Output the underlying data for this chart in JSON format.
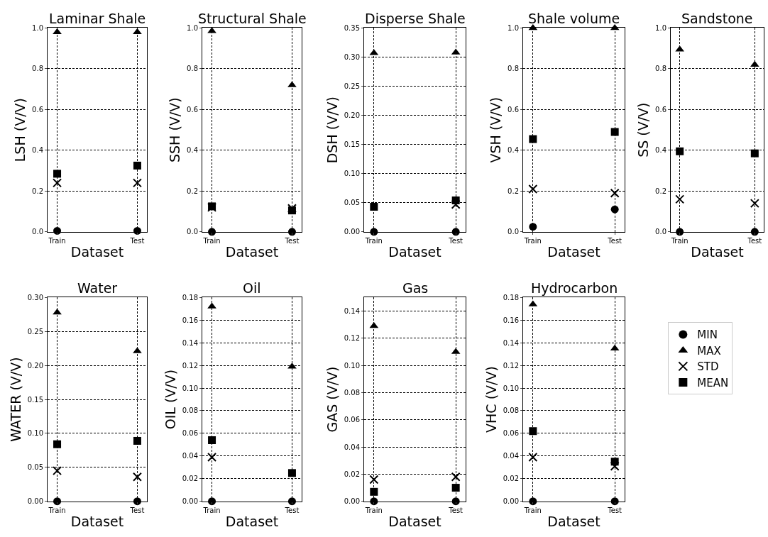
{
  "chart_data": [
    {
      "type": "scatter",
      "title": "Laminar Shale",
      "xlabel": "Dataset",
      "ylabel": "LSH (V/V)",
      "categories": [
        "Train",
        "Test"
      ],
      "ylim": [
        0,
        1
      ],
      "yticks": [
        {
          "value": 0,
          "label": "0.0"
        },
        0.2,
        0.4,
        0.6,
        0.8,
        {
          "value": 1,
          "label": "1.0"
        }
      ],
      "grid": true,
      "legend": "right",
      "series": [
        {
          "name": "MIN",
          "color": "#000000",
          "marker": "circle",
          "values": [
            0.005,
            0.005
          ]
        },
        {
          "name": "MAX",
          "color": "#000000",
          "marker": "triangle",
          "values": [
            0.98,
            0.98
          ]
        },
        {
          "name": "STD",
          "color": "#000000",
          "marker": "cross",
          "values": [
            0.24,
            0.24
          ]
        },
        {
          "name": "MEAN",
          "color": "#000000",
          "marker": "square",
          "values": [
            0.285,
            0.325
          ]
        }
      ]
    },
    {
      "type": "scatter",
      "title": "Structural Shale",
      "xlabel": "Dataset",
      "ylabel": "SSH (V/V)",
      "categories": [
        "Train",
        "Test"
      ],
      "ylim": [
        0,
        1
      ],
      "yticks": [
        {
          "value": 0,
          "label": "0.0"
        },
        0.2,
        0.4,
        0.6,
        0.8,
        {
          "value": 1,
          "label": "1.0"
        }
      ],
      "grid": true,
      "series": [
        {
          "color": "#000000",
          "marker": "circle",
          "values": [
            0,
            0
          ]
        },
        {
          "color": "#000000",
          "marker": "triangle",
          "values": [
            0.985,
            0.72
          ]
        },
        {
          "color": "#000000",
          "marker": "cross",
          "values": [
            0.12,
            0.115
          ]
        },
        {
          "color": "#000000",
          "marker": "square",
          "values": [
            0.125,
            0.105
          ]
        }
      ]
    },
    {
      "type": "scatter",
      "title": "Disperse Shale",
      "xlabel": "Dataset",
      "ylabel": "DSH (V/V)",
      "categories": [
        "Train",
        "Test"
      ],
      "ylim": [
        0,
        0.35
      ],
      "yticks": [
        {
          "value": 0,
          "label": "0.00"
        },
        0.05,
        {
          "value": 0.1,
          "label": "0.10"
        },
        0.15,
        {
          "value": 0.2,
          "label": "0.20"
        },
        0.25,
        {
          "value": 0.3,
          "label": "0.30"
        },
        0.35
      ],
      "grid": true,
      "series": [
        {
          "color": "#000000",
          "marker": "circle",
          "values": [
            0,
            0
          ]
        },
        {
          "color": "#000000",
          "marker": "triangle",
          "values": [
            0.307,
            0.308
          ]
        },
        {
          "color": "#000000",
          "marker": "cross",
          "values": [
            null,
            0.047
          ]
        },
        {
          "color": "#000000",
          "marker": "square",
          "values": [
            0.043,
            0.054
          ]
        }
      ]
    },
    {
      "type": "scatter",
      "title": "Shale volume",
      "xlabel": "Dataset",
      "ylabel": "VSH (V/V)",
      "categories": [
        "Train",
        "Test"
      ],
      "ylim": [
        0,
        1
      ],
      "yticks": [
        {
          "value": 0,
          "label": "0.0"
        },
        0.2,
        0.4,
        0.6,
        0.8,
        {
          "value": 1,
          "label": "1.0"
        }
      ],
      "grid": true,
      "series": [
        {
          "color": "#000000",
          "marker": "circle",
          "values": [
            0.025,
            0.11
          ]
        },
        {
          "color": "#000000",
          "marker": "triangle",
          "values": [
            1.0,
            1.0
          ]
        },
        {
          "color": "#000000",
          "marker": "cross",
          "values": [
            0.21,
            0.19
          ]
        },
        {
          "color": "#000000",
          "marker": "square",
          "values": [
            0.455,
            0.49
          ]
        }
      ]
    },
    {
      "type": "scatter",
      "title": "Sandstone",
      "xlabel": "Dataset",
      "ylabel": "SS (V/V)",
      "categories": [
        "Train",
        "Test"
      ],
      "ylim": [
        0,
        1
      ],
      "yticks": [
        {
          "value": 0,
          "label": "0.0"
        },
        0.2,
        0.4,
        0.6,
        0.8,
        {
          "value": 1,
          "label": "1.0"
        }
      ],
      "grid": true,
      "series": [
        {
          "color": "#000000",
          "marker": "circle",
          "values": [
            0,
            0
          ]
        },
        {
          "color": "#000000",
          "marker": "triangle",
          "values": [
            0.895,
            0.82
          ]
        },
        {
          "color": "#000000",
          "marker": "cross",
          "values": [
            0.16,
            0.14
          ]
        },
        {
          "color": "#000000",
          "marker": "square",
          "values": [
            0.395,
            0.385
          ]
        }
      ]
    },
    {
      "type": "scatter",
      "title": "Water",
      "xlabel": "Dataset",
      "ylabel": "WATER (V/V)",
      "categories": [
        "Train",
        "Test"
      ],
      "ylim": [
        0,
        0.3
      ],
      "yticks": [
        {
          "value": 0,
          "label": "0.00"
        },
        0.05,
        {
          "value": 0.1,
          "label": "0.10"
        },
        0.15,
        {
          "value": 0.2,
          "label": "0.20"
        },
        0.25,
        {
          "value": 0.3,
          "label": "0.30"
        }
      ],
      "grid": true,
      "series": [
        {
          "color": "#000000",
          "marker": "circle",
          "values": [
            0,
            0
          ]
        },
        {
          "color": "#000000",
          "marker": "triangle",
          "values": [
            0.278,
            0.221
          ]
        },
        {
          "color": "#000000",
          "marker": "cross",
          "values": [
            0.045,
            0.036
          ]
        },
        {
          "color": "#000000",
          "marker": "square",
          "values": [
            0.084,
            0.089
          ]
        }
      ]
    },
    {
      "type": "scatter",
      "title": "Oil",
      "xlabel": "Dataset",
      "ylabel": "OIL (V/V)",
      "categories": [
        "Train",
        "Test"
      ],
      "ylim": [
        0,
        0.18
      ],
      "yticks": [
        {
          "value": 0,
          "label": "0.00"
        },
        0.02,
        0.04,
        0.06,
        0.08,
        {
          "value": 0.1,
          "label": "0.10"
        },
        0.12,
        0.14,
        0.16,
        0.18
      ],
      "grid": true,
      "series": [
        {
          "color": "#000000",
          "marker": "circle",
          "values": [
            0,
            0
          ]
        },
        {
          "color": "#000000",
          "marker": "triangle",
          "values": [
            0.172,
            0.119
          ]
        },
        {
          "color": "#000000",
          "marker": "cross",
          "values": [
            0.039,
            null
          ]
        },
        {
          "color": "#000000",
          "marker": "square",
          "values": [
            0.054,
            0.025
          ]
        }
      ]
    },
    {
      "type": "scatter",
      "title": "Gas",
      "xlabel": "Dataset",
      "ylabel": "GAS (V/V)",
      "categories": [
        "Train",
        "Test"
      ],
      "ylim": [
        0,
        0.15
      ],
      "yticks": [
        {
          "value": 0,
          "label": "0.00"
        },
        0.02,
        0.04,
        0.06,
        0.08,
        {
          "value": 0.1,
          "label": "0.10"
        },
        0.12,
        0.14
      ],
      "grid": true,
      "series": [
        {
          "color": "#000000",
          "marker": "circle",
          "values": [
            0,
            0
          ]
        },
        {
          "color": "#000000",
          "marker": "triangle",
          "values": [
            0.129,
            0.11
          ]
        },
        {
          "color": "#000000",
          "marker": "cross",
          "values": [
            0.016,
            0.018
          ]
        },
        {
          "color": "#000000",
          "marker": "square",
          "values": [
            0.007,
            0.01
          ]
        }
      ]
    },
    {
      "type": "scatter",
      "title": "Hydrocarbon",
      "xlabel": "Dataset",
      "ylabel": "VHC (V/V)",
      "categories": [
        "Train",
        "Test"
      ],
      "ylim": [
        0,
        0.18
      ],
      "yticks": [
        {
          "value": 0,
          "label": "0.00"
        },
        0.02,
        0.04,
        0.06,
        0.08,
        {
          "value": 0.1,
          "label": "0.10"
        },
        0.12,
        0.14,
        0.16,
        0.18
      ],
      "grid": true,
      "series": [
        {
          "color": "#000000",
          "marker": "circle",
          "values": [
            0,
            0
          ]
        },
        {
          "color": "#000000",
          "marker": "triangle",
          "values": [
            0.174,
            0.135
          ]
        },
        {
          "color": "#000000",
          "marker": "cross",
          "values": [
            0.039,
            0.031
          ]
        },
        {
          "color": "#000000",
          "marker": "square",
          "values": [
            0.062,
            0.035
          ]
        }
      ]
    }
  ]
}
